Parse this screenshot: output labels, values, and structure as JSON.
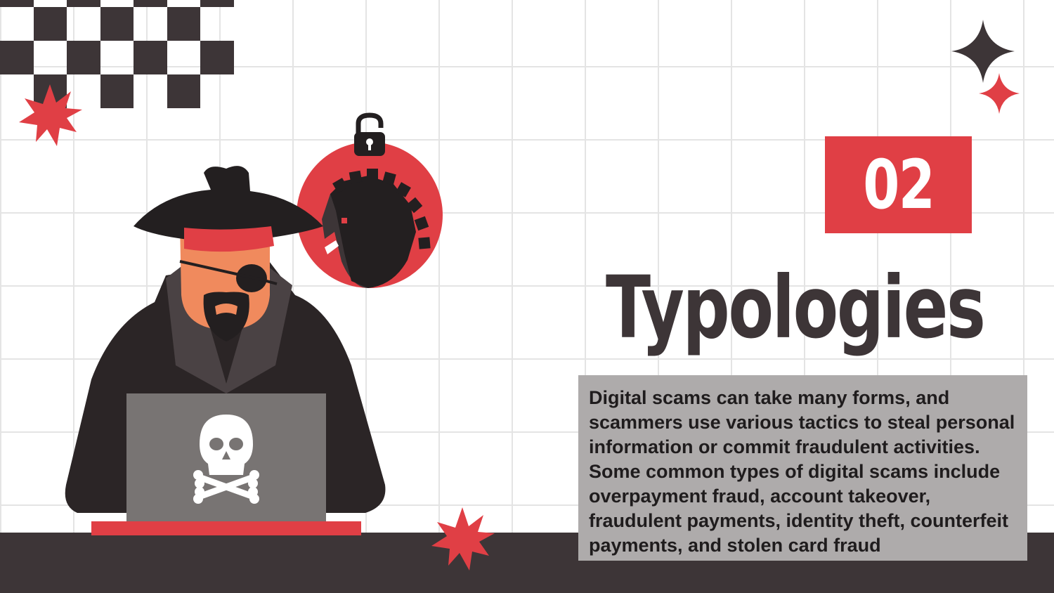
{
  "slide": {
    "number_badge": "02",
    "title": "Typologies",
    "body": "Digital scams can take many forms, and scammers use various tactics to steal personal information or commit fraudulent activities. Some common types of digital scams include overpayment fraud, account takeover, fraudulent payments, identity theft, counterfeit payments, and stolen card fraud"
  },
  "colors": {
    "accent_red": "#e03f45",
    "dark": "#3d3537",
    "text_box_gray": "#aeabab",
    "grid_line": "#e4e4e4"
  },
  "icons": [
    "checkerboard-decoration",
    "starburst-icon",
    "sparkle-star-icon",
    "hacker-illustration",
    "unlocked-padlock-icon",
    "trojan-horse-icon",
    "skull-crossbones-icon"
  ]
}
